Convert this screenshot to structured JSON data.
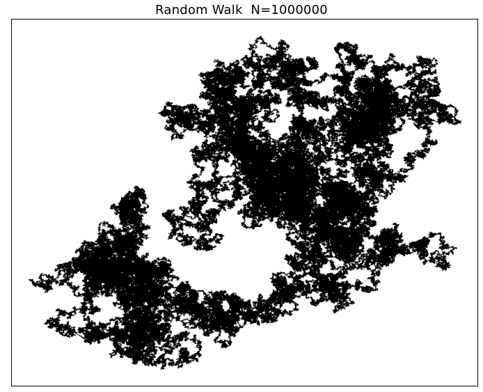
{
  "chart_data": {
    "type": "scatter",
    "title": "Random Walk  N=1000000",
    "steps": 1000000,
    "xlabel": "",
    "ylabel": "",
    "axes_visible": false,
    "ticks_visible": false,
    "grid": false,
    "legend": "none",
    "colors": {
      "marker": "#000000",
      "background": "#ffffff",
      "frame": "#000000"
    },
    "series": [
      {
        "marker": "pixel",
        "color": "#000000"
      }
    ]
  }
}
